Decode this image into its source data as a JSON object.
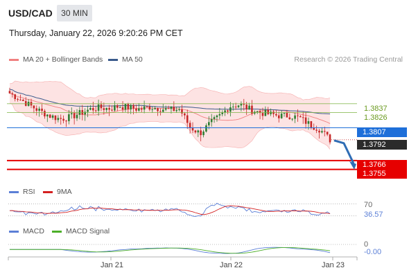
{
  "header": {
    "symbol": "USD/CAD",
    "timeframe": "30 MIN",
    "datetime": "Thursday, January 22, 2026 9:20:26 PM CET"
  },
  "legend": {
    "bollinger_label": "MA 20 + Bollinger Bands",
    "ma50_label": "MA 50",
    "credit": "Research © 2026 Trading Central"
  },
  "colors": {
    "bollinger": "#f08080",
    "ma50": "#3a5a8c",
    "candle_up": "#2e7d32",
    "candle_down": "#c62828",
    "resistance": "#7cb342",
    "current_price": "#1e6fd9",
    "support": "#e60000",
    "arrow": "#2f6db5",
    "rsi": "#5b7fd6",
    "rsi_ma": "#d42020",
    "macd": "#5b7fd6",
    "macd_signal": "#4caf28"
  },
  "chart_data": [
    {
      "type": "candlestick",
      "title": "USD/CAD 30 MIN",
      "ylim": [
        1.374,
        1.388
      ],
      "x_ticks": [
        "Jan 21",
        "Jan 22",
        "Jan 23"
      ],
      "series": [
        {
          "name": "MA 20 + Bollinger Bands"
        },
        {
          "name": "MA 50"
        }
      ],
      "close_path": [
        1.385,
        1.3843,
        1.3835,
        1.3828,
        1.3822,
        1.3818,
        1.382,
        1.3825,
        1.383,
        1.3832,
        1.3831,
        1.3834,
        1.3832,
        1.383,
        1.3833,
        1.3831,
        1.3829,
        1.383,
        1.3808,
        1.38,
        1.3812,
        1.3822,
        1.3834,
        1.3836,
        1.383,
        1.3826,
        1.3824,
        1.3822,
        1.3822,
        1.3819,
        1.3811,
        1.3805,
        1.3792
      ],
      "levels": {
        "resistance": [
          1.3837,
          1.3826
        ],
        "current": 1.3807,
        "last_price": 1.3792,
        "support": [
          1.3766,
          1.3755
        ]
      },
      "forecast": {
        "direction": "down",
        "target": 1.3766
      }
    },
    {
      "type": "line",
      "title": "",
      "series": [
        {
          "name": "RSI"
        },
        {
          "name": "9MA"
        }
      ],
      "reference_level": 70,
      "last_value": 36.57
    },
    {
      "type": "line",
      "title": "",
      "series": [
        {
          "name": "MACD"
        },
        {
          "name": "MACD Signal"
        }
      ],
      "reference_level": 0,
      "last_value": -0.0
    }
  ],
  "main_labels": {
    "r1": "1.3837",
    "r2": "1.3826",
    "current": "1.3807",
    "last": "1.3792",
    "s1": "1.3766",
    "s2": "1.3755"
  },
  "rsi_panel": {
    "label": "RSI",
    "ma_label": "9MA",
    "level_label": "70",
    "value_label": "36.57"
  },
  "macd_panel": {
    "label": "MACD",
    "signal_label": "MACD Signal",
    "zero_label": "0",
    "value_label": "-0.00"
  },
  "x_axis": {
    "labels": [
      "Jan 21",
      "Jan 22",
      "Jan 23"
    ]
  }
}
